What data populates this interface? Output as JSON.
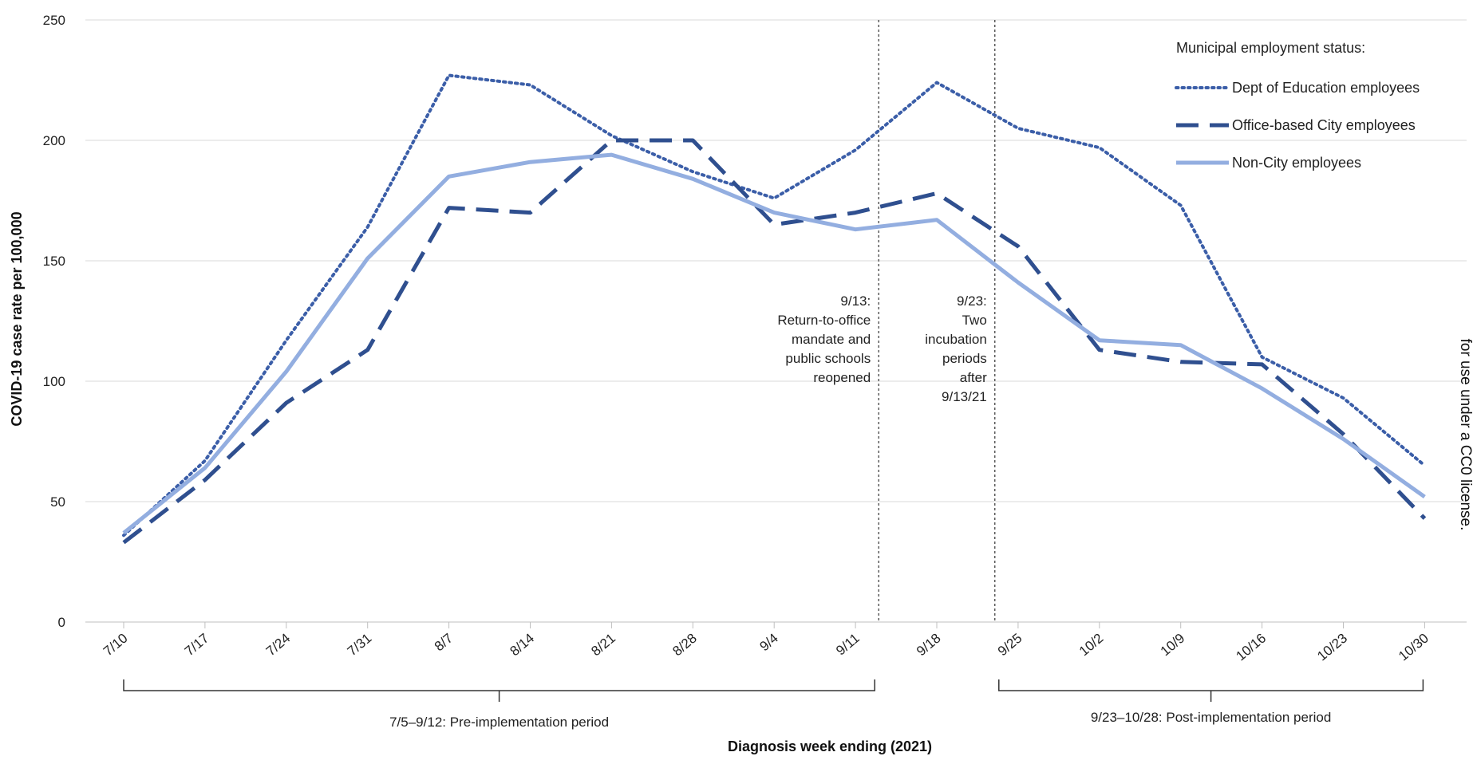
{
  "chart_data": {
    "type": "line",
    "title": "",
    "xlabel": "Diagnosis week ending (2021)",
    "ylabel": "COVID-19 case rate per 100,000",
    "ylim": [
      0,
      250
    ],
    "yticks": [
      0,
      50,
      100,
      150,
      200,
      250
    ],
    "grid": "horizontal",
    "legend_position": "top-right",
    "legend_title": "Municipal employment status:",
    "categories": [
      "7/10",
      "7/17",
      "7/24",
      "7/31",
      "8/7",
      "8/14",
      "8/21",
      "8/28",
      "9/4",
      "9/11",
      "9/18",
      "9/25",
      "10/2",
      "10/9",
      "10/16",
      "10/23",
      "10/30"
    ],
    "series": [
      {
        "name": "Dept of Education employees",
        "style": "dotted",
        "color": "#3b5ea8",
        "values": [
          36,
          67,
          117,
          164,
          227,
          223,
          202,
          187,
          176,
          196,
          224,
          205,
          197,
          173,
          110,
          93,
          65
        ]
      },
      {
        "name": "Office-based City employees",
        "style": "dashed",
        "color": "#2f4f8f",
        "values": [
          33,
          59,
          91,
          113,
          172,
          170,
          200,
          200,
          165,
          170,
          178,
          156,
          113,
          108,
          107,
          78,
          43
        ]
      },
      {
        "name": "Non-City employees",
        "style": "solid",
        "color": "#93aee0",
        "values": [
          37,
          64,
          104,
          151,
          185,
          191,
          194,
          184,
          170,
          163,
          167,
          141,
          117,
          115,
          97,
          76,
          52
        ]
      }
    ],
    "annotations": [
      {
        "at": "9/13",
        "lines": [
          "9/13:",
          "Return-to-office",
          "mandate and",
          "public schools",
          "reopened"
        ]
      },
      {
        "at": "9/23",
        "lines": [
          "9/23:",
          "Two",
          "incubation",
          "periods",
          "after",
          "9/13/21"
        ]
      }
    ],
    "periods": [
      {
        "label": "7/5–9/12: Pre-implementation period"
      },
      {
        "label": "9/23–10/28: Post-implementation period"
      }
    ]
  },
  "side_note": "for use under a CC0 license."
}
